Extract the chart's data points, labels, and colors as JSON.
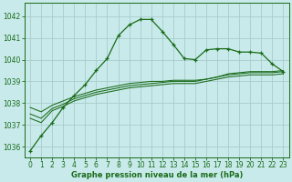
{
  "title": "Graphe pression niveau de la mer (hPa)",
  "bg_color": "#c8eaea",
  "grid_color": "#a8cccc",
  "line_color": "#1a6b1a",
  "xlim": [
    -0.5,
    23.5
  ],
  "ylim": [
    1035.5,
    1042.6
  ],
  "x_ticks": [
    0,
    1,
    2,
    3,
    4,
    5,
    6,
    7,
    8,
    9,
    10,
    11,
    12,
    13,
    14,
    15,
    16,
    17,
    18,
    19,
    20,
    21,
    22,
    23
  ],
  "y_ticks": [
    1036,
    1037,
    1038,
    1039,
    1040,
    1041,
    1042
  ],
  "series_main": [
    1035.8,
    1036.5,
    1037.1,
    1037.8,
    1038.35,
    1038.85,
    1039.5,
    1040.05,
    1041.1,
    1041.6,
    1041.85,
    1041.85,
    1041.3,
    1040.7,
    1040.05,
    1040.0,
    1040.45,
    1040.5,
    1040.5,
    1040.35,
    1040.35,
    1040.3,
    1039.8,
    1039.45
  ],
  "series2": [
    1037.3,
    1037.1,
    1037.65,
    1037.85,
    1038.1,
    1038.25,
    1038.4,
    1038.5,
    1038.6,
    1038.7,
    1038.75,
    1038.8,
    1038.85,
    1038.9,
    1038.9,
    1038.9,
    1039.0,
    1039.1,
    1039.2,
    1039.25,
    1039.3,
    1039.3,
    1039.3,
    1039.35
  ],
  "series3": [
    1037.5,
    1037.3,
    1037.75,
    1037.95,
    1038.2,
    1038.35,
    1038.5,
    1038.6,
    1038.7,
    1038.8,
    1038.85,
    1038.9,
    1038.95,
    1039.0,
    1039.0,
    1039.0,
    1039.1,
    1039.2,
    1039.3,
    1039.35,
    1039.4,
    1039.4,
    1039.4,
    1039.45
  ],
  "series4": [
    1037.8,
    1037.6,
    1037.9,
    1038.1,
    1038.3,
    1038.45,
    1038.6,
    1038.7,
    1038.8,
    1038.9,
    1038.95,
    1039.0,
    1039.0,
    1039.05,
    1039.05,
    1039.05,
    1039.1,
    1039.2,
    1039.35,
    1039.4,
    1039.45,
    1039.45,
    1039.45,
    1039.5
  ]
}
